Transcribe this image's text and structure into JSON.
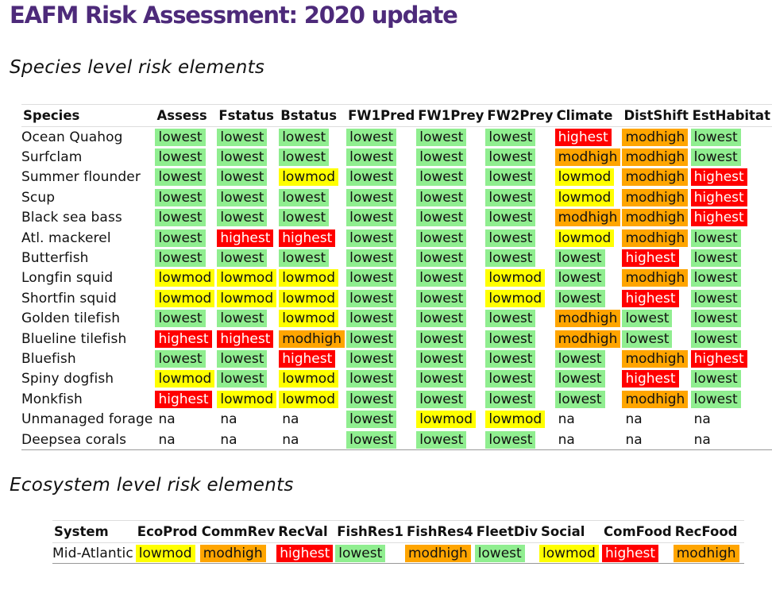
{
  "title": "EAFM Risk Assessment: 2020 update",
  "species_section_title": "Species level risk elements",
  "ecosystem_section_title": "Ecosystem level risk elements",
  "risk_colors": {
    "lowest": "#90ee90",
    "lowmod": "#ffff00",
    "modhigh": "#ffa500",
    "highest": "#ff0000"
  },
  "species_table": {
    "headers": [
      "Species",
      "Assess",
      "Fstatus",
      "Bstatus",
      "FW1Pred",
      "FW1Prey",
      "FW2Prey",
      "Climate",
      "DistShift",
      "EstHabitat"
    ],
    "rows": [
      {
        "name": "Ocean Quahog",
        "values": [
          "lowest",
          "lowest",
          "lowest",
          "lowest",
          "lowest",
          "lowest",
          "highest",
          "modhigh",
          "lowest"
        ]
      },
      {
        "name": "Surfclam",
        "values": [
          "lowest",
          "lowest",
          "lowest",
          "lowest",
          "lowest",
          "lowest",
          "modhigh",
          "modhigh",
          "lowest"
        ]
      },
      {
        "name": "Summer flounder",
        "values": [
          "lowest",
          "lowest",
          "lowmod",
          "lowest",
          "lowest",
          "lowest",
          "lowmod",
          "modhigh",
          "highest"
        ]
      },
      {
        "name": "Scup",
        "values": [
          "lowest",
          "lowest",
          "lowest",
          "lowest",
          "lowest",
          "lowest",
          "lowmod",
          "modhigh",
          "highest"
        ]
      },
      {
        "name": "Black sea bass",
        "values": [
          "lowest",
          "lowest",
          "lowest",
          "lowest",
          "lowest",
          "lowest",
          "modhigh",
          "modhigh",
          "highest"
        ]
      },
      {
        "name": "Atl. mackerel",
        "values": [
          "lowest",
          "highest",
          "highest",
          "lowest",
          "lowest",
          "lowest",
          "lowmod",
          "modhigh",
          "lowest"
        ]
      },
      {
        "name": "Butterfish",
        "values": [
          "lowest",
          "lowest",
          "lowest",
          "lowest",
          "lowest",
          "lowest",
          "lowest",
          "highest",
          "lowest"
        ]
      },
      {
        "name": "Longfin squid",
        "values": [
          "lowmod",
          "lowmod",
          "lowmod",
          "lowest",
          "lowest",
          "lowmod",
          "lowest",
          "modhigh",
          "lowest"
        ]
      },
      {
        "name": "Shortfin squid",
        "values": [
          "lowmod",
          "lowmod",
          "lowmod",
          "lowest",
          "lowest",
          "lowmod",
          "lowest",
          "highest",
          "lowest"
        ]
      },
      {
        "name": "Golden tilefish",
        "values": [
          "lowest",
          "lowest",
          "lowmod",
          "lowest",
          "lowest",
          "lowest",
          "modhigh",
          "lowest",
          "lowest"
        ]
      },
      {
        "name": "Blueline tilefish",
        "values": [
          "highest",
          "highest",
          "modhigh",
          "lowest",
          "lowest",
          "lowest",
          "modhigh",
          "lowest",
          "lowest"
        ]
      },
      {
        "name": "Bluefish",
        "values": [
          "lowest",
          "lowest",
          "highest",
          "lowest",
          "lowest",
          "lowest",
          "lowest",
          "modhigh",
          "highest"
        ]
      },
      {
        "name": "Spiny dogfish",
        "values": [
          "lowmod",
          "lowest",
          "lowmod",
          "lowest",
          "lowest",
          "lowest",
          "lowest",
          "highest",
          "lowest"
        ]
      },
      {
        "name": "Monkfish",
        "values": [
          "highest",
          "lowmod",
          "lowmod",
          "lowest",
          "lowest",
          "lowest",
          "lowest",
          "modhigh",
          "lowest"
        ]
      },
      {
        "name": "Unmanaged forage",
        "values": [
          "na",
          "na",
          "na",
          "lowest",
          "lowmod",
          "lowmod",
          "na",
          "na",
          "na"
        ]
      },
      {
        "name": "Deepsea corals",
        "values": [
          "na",
          "na",
          "na",
          "lowest",
          "lowest",
          "lowest",
          "na",
          "na",
          "na"
        ]
      }
    ]
  },
  "ecosystem_table": {
    "headers": [
      "System",
      "EcoProd",
      "CommRev",
      "RecVal",
      "FishRes1",
      "FishRes4",
      "FleetDiv",
      "Social",
      "ComFood",
      "RecFood"
    ],
    "rows": [
      {
        "name": "Mid-Atlantic",
        "values": [
          "lowmod",
          "modhigh",
          "highest",
          "lowest",
          "modhigh",
          "lowest",
          "lowmod",
          "highest",
          "modhigh"
        ]
      }
    ]
  }
}
